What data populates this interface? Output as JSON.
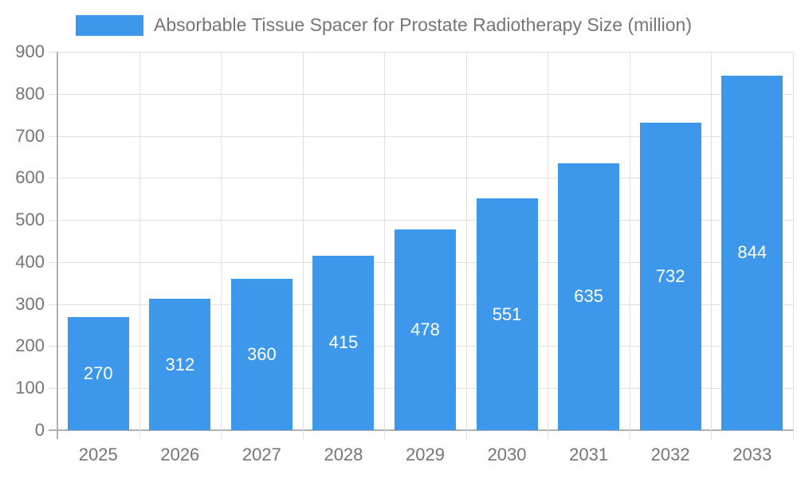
{
  "chart_data": {
    "type": "bar",
    "title": "Absorbable Tissue Spacer for Prostate Radiotherapy Size (million)",
    "categories": [
      "2025",
      "2026",
      "2027",
      "2028",
      "2029",
      "2030",
      "2031",
      "2032",
      "2033"
    ],
    "values": [
      270,
      312,
      360,
      415,
      478,
      551,
      635,
      732,
      844
    ],
    "xlabel": "",
    "ylabel": "",
    "ylim": [
      0,
      900
    ],
    "ytick_step": 100,
    "grid": true,
    "legend_position": "top",
    "colors": {
      "bar": "#3d98eb",
      "bar_value_text": "#ffffff",
      "axis_text": "#757575",
      "gridline": "#e0e0e0",
      "axis_line": "#b0b0b0"
    }
  }
}
